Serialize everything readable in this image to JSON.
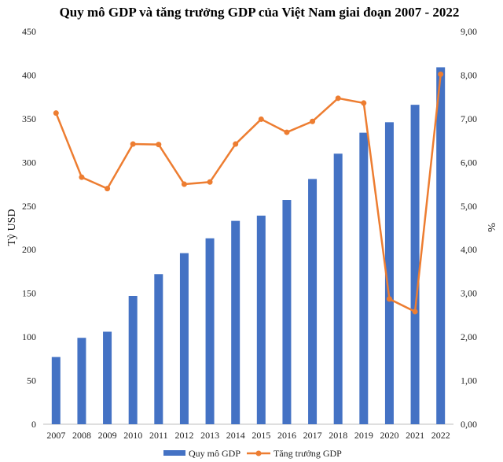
{
  "chart_data": {
    "type": "bar+line",
    "title": "Quy mô GDP và tăng trưởng GDP của Việt Nam giai đoạn 2007 - 2022",
    "categories": [
      "2007",
      "2008",
      "2009",
      "2010",
      "2011",
      "2012",
      "2013",
      "2014",
      "2015",
      "2016",
      "2017",
      "2018",
      "2019",
      "2020",
      "2021",
      "2022"
    ],
    "series": [
      {
        "name": "Quy mô GDP",
        "kind": "bar",
        "axis": "left",
        "color": "#4472C4",
        "values": [
          77,
          99,
          106,
          147,
          172,
          196,
          213,
          233,
          239,
          257,
          281,
          310,
          334,
          346,
          366,
          409
        ]
      },
      {
        "name": "Tăng trưởng GDP",
        "kind": "line",
        "axis": "right",
        "color": "#ED7D31",
        "values": [
          7.13,
          5.66,
          5.4,
          6.42,
          6.41,
          5.5,
          5.55,
          6.42,
          6.99,
          6.69,
          6.94,
          7.47,
          7.36,
          2.87,
          2.58,
          8.02
        ]
      }
    ],
    "ylabel": "Tỷ USD",
    "y2label": "%",
    "ylim": [
      0,
      450
    ],
    "y2lim": [
      0,
      9
    ],
    "yticks": [
      "0",
      "50",
      "100",
      "150",
      "200",
      "250",
      "300",
      "350",
      "400",
      "450"
    ],
    "y2ticks": [
      "0,00",
      "1,00",
      "2,00",
      "3,00",
      "4,00",
      "5,00",
      "6,00",
      "7,00",
      "8,00",
      "9,00"
    ],
    "legend_position": "bottom",
    "grid": false
  }
}
